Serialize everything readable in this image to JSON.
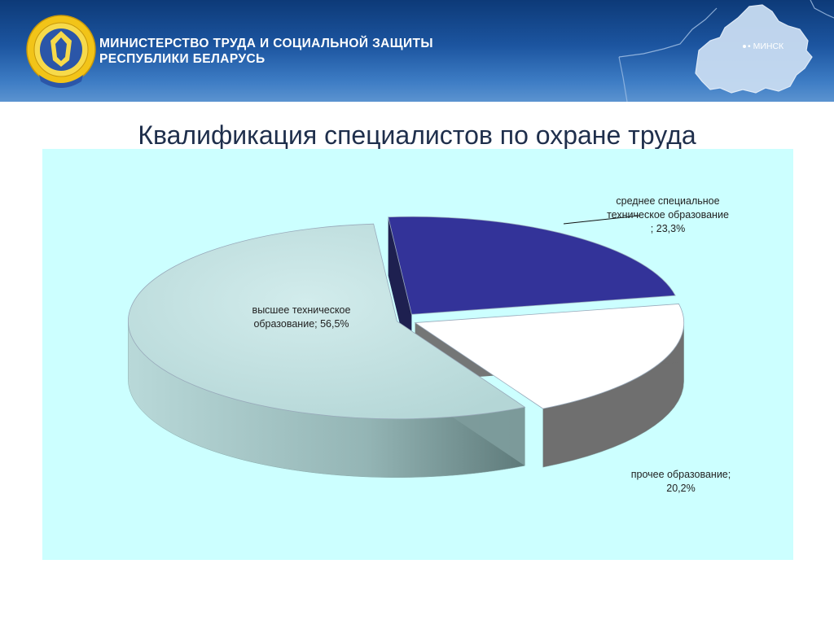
{
  "header": {
    "org_name_line1": "МИНИСТЕРСТВО ТРУДА И СОЦИАЛЬНОЙ ЗАЩИТЫ",
    "org_name_line2": "РЕСПУБЛИКИ БЕЛАРУСЬ",
    "map_city": "МИНСК",
    "logo_ring_text": "МИНИСТЕРСТВО ТРУДА И СОЦИАЛЬНОЙ ЗАЩИТЫ РЕСПУБЛИКИ БЕЛАРУСЬ"
  },
  "slide": {
    "title": "Квалификация специалистов по охране труда"
  },
  "chart_data": {
    "type": "pie",
    "title": "",
    "slices": [
      {
        "name": "среднее специальное техническое образование",
        "value": 23.3,
        "label_lines": [
          "среднее специальное",
          "техническое образование",
          "; 23,3%"
        ],
        "color": "#333399",
        "exploded": false
      },
      {
        "name": "прочее образование",
        "value": 20.2,
        "label_lines": [
          "прочее образование;",
          "20,2%"
        ],
        "color": "#ffffff",
        "exploded": false
      },
      {
        "name": "высшее техническое образование",
        "value": 56.5,
        "label_lines": [
          "высшее техническое",
          "образование; 56,5%"
        ],
        "color": "#c5e5e5",
        "exploded": false
      }
    ],
    "legend": "none",
    "style": "3d-pie-exploded"
  }
}
